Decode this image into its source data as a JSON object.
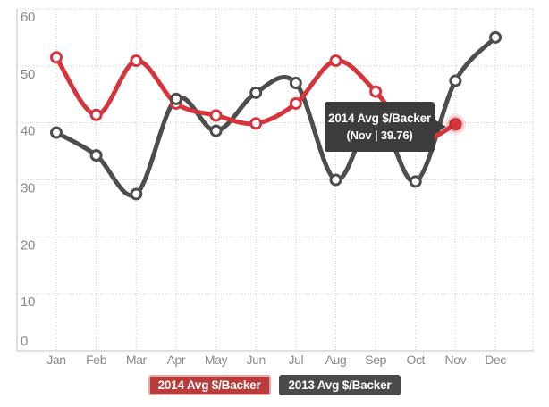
{
  "chart_data": {
    "type": "line",
    "title": "",
    "xlabel": "",
    "ylabel": "",
    "categories": [
      "Jan",
      "Feb",
      "Mar",
      "Apr",
      "May",
      "Jun",
      "Jul",
      "Aug",
      "Sep",
      "Oct",
      "Nov",
      "Dec"
    ],
    "y_ticks": [
      "0",
      "10",
      "20",
      "30",
      "40",
      "50",
      "60"
    ],
    "ylim": [
      0,
      60
    ],
    "grid": "dotted",
    "legend_position": "bottom",
    "series": [
      {
        "name": "2014 Avg $/Backer",
        "color": "#d6343c",
        "values": [
          51.5,
          41.4,
          50.9,
          43.4,
          41.3,
          39.9,
          43.4,
          50.9,
          45.5,
          37,
          39.76,
          null
        ]
      },
      {
        "name": "2013 Avg $/Backer",
        "color": "#4d4d4d",
        "values": [
          38.3,
          34.3,
          27.5,
          44.2,
          38.6,
          45.3,
          47,
          30,
          41.5,
          29.7,
          47.4,
          55
        ]
      }
    ],
    "highlight": {
      "series_index": 0,
      "point_index": 10
    },
    "tooltip": {
      "line1": "2014 Avg $/Backer",
      "line2": "(Nov | 39.76)",
      "series": "2014 Avg $/Backer",
      "category": "Nov",
      "value": 39.76
    }
  },
  "legend": {
    "items": [
      {
        "label": "2014 Avg $/Backer",
        "bg": "#bb3a3a",
        "border": "#e4a9a9",
        "active": true
      },
      {
        "label": "2013 Avg $/Backer",
        "bg": "#4a4a4a",
        "border": "#4a4a4a",
        "active": false
      }
    ]
  },
  "colors": {
    "background": "#ffffff",
    "grid": "#cbcbcb",
    "axis": "#c2c2c2",
    "tick_label": "#8a8a8a",
    "tooltip_bg": "#3c3c3c",
    "highlight_glow": "#d6343c"
  }
}
